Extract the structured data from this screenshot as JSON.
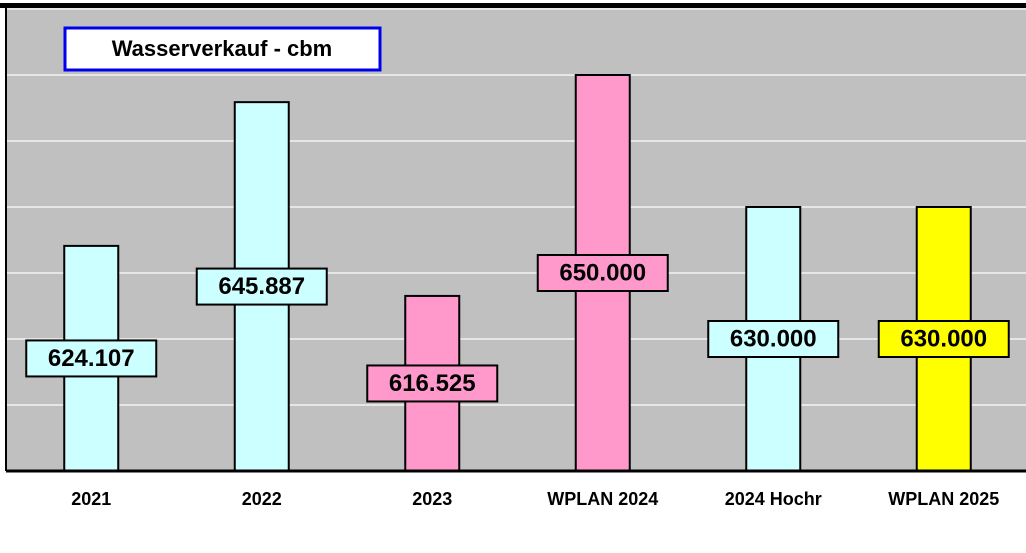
{
  "chart_data": {
    "type": "bar",
    "title": "Wasserverkauf - cbm",
    "categories": [
      "2021",
      "2022",
      "2023",
      "WPLAN 2024",
      "2024 Hochr",
      "WPLAN 2025"
    ],
    "values": [
      624107,
      645887,
      616525,
      650000,
      630000,
      630000
    ],
    "value_labels": [
      "624.107",
      "645.887",
      "616.525",
      "650.000",
      "630.000",
      "630.000"
    ],
    "colors": [
      "#ccffff",
      "#ccffff",
      "#ff99cc",
      "#ff99cc",
      "#ccffff",
      "#ffff00"
    ],
    "ylim": [
      590000,
      660000
    ],
    "yticks": [
      590000,
      600000,
      610000,
      620000,
      630000,
      640000,
      650000,
      660000
    ],
    "grid": true
  }
}
